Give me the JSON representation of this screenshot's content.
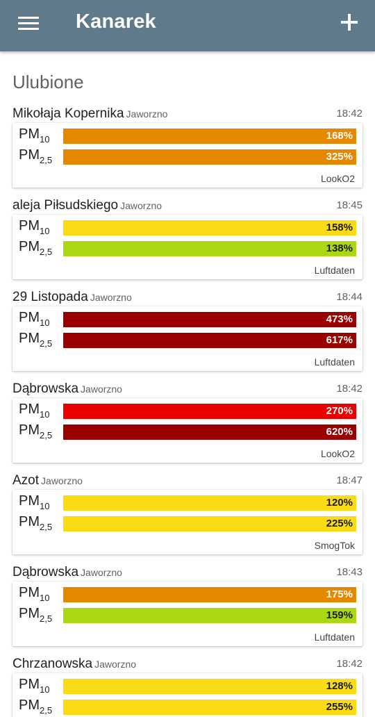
{
  "app": {
    "title": "Kanarek"
  },
  "section_title": "Ulubione",
  "colors": {
    "appbar": "#5f7a8b",
    "orange": "#e68700",
    "yellow": "#fbdc14",
    "green": "#abd810",
    "red": "#e90000",
    "darkred": "#9a0000"
  },
  "pm10_label": "PM",
  "pm10_sub": "10",
  "pm25_label": "PM",
  "pm25_sub": "2,5",
  "stations": [
    {
      "name": "Mikołaja Kopernika",
      "city": "Jaworzno",
      "time": "18:42",
      "pm10": {
        "value": "168%",
        "color": "#e68700"
      },
      "pm25": {
        "value": "325%",
        "color": "#e68700"
      },
      "source": "LookO2"
    },
    {
      "name": "aleja Piłsudskiego",
      "city": "Jaworzno",
      "time": "18:45",
      "pm10": {
        "value": "158%",
        "color": "#fbdc14"
      },
      "pm25": {
        "value": "138%",
        "color": "#abd810"
      },
      "source": "Luftdaten"
    },
    {
      "name": "29 Listopada",
      "city": "Jaworzno",
      "time": "18:44",
      "pm10": {
        "value": "473%",
        "color": "#9a0000"
      },
      "pm25": {
        "value": "617%",
        "color": "#9a0000"
      },
      "source": "Luftdaten"
    },
    {
      "name": "Dąbrowska",
      "city": "Jaworzno",
      "time": "18:42",
      "pm10": {
        "value": "270%",
        "color": "#e90000"
      },
      "pm25": {
        "value": "620%",
        "color": "#9a0000"
      },
      "source": "LookO2"
    },
    {
      "name": "Azot",
      "city": "Jaworzno",
      "time": "18:47",
      "pm10": {
        "value": "120%",
        "color": "#fbdc14"
      },
      "pm25": {
        "value": "225%",
        "color": "#fbdc14"
      },
      "source": "SmogTok"
    },
    {
      "name": "Dąbrowska",
      "city": "Jaworzno",
      "time": "18:43",
      "pm10": {
        "value": "175%",
        "color": "#e68700"
      },
      "pm25": {
        "value": "159%",
        "color": "#abd810"
      },
      "source": "Luftdaten"
    },
    {
      "name": "Chrzanowska",
      "city": "Jaworzno",
      "time": "18:42",
      "pm10": {
        "value": "128%",
        "color": "#fbdc14"
      },
      "pm25": {
        "value": "255%",
        "color": "#fbdc14"
      },
      "source": ""
    }
  ]
}
